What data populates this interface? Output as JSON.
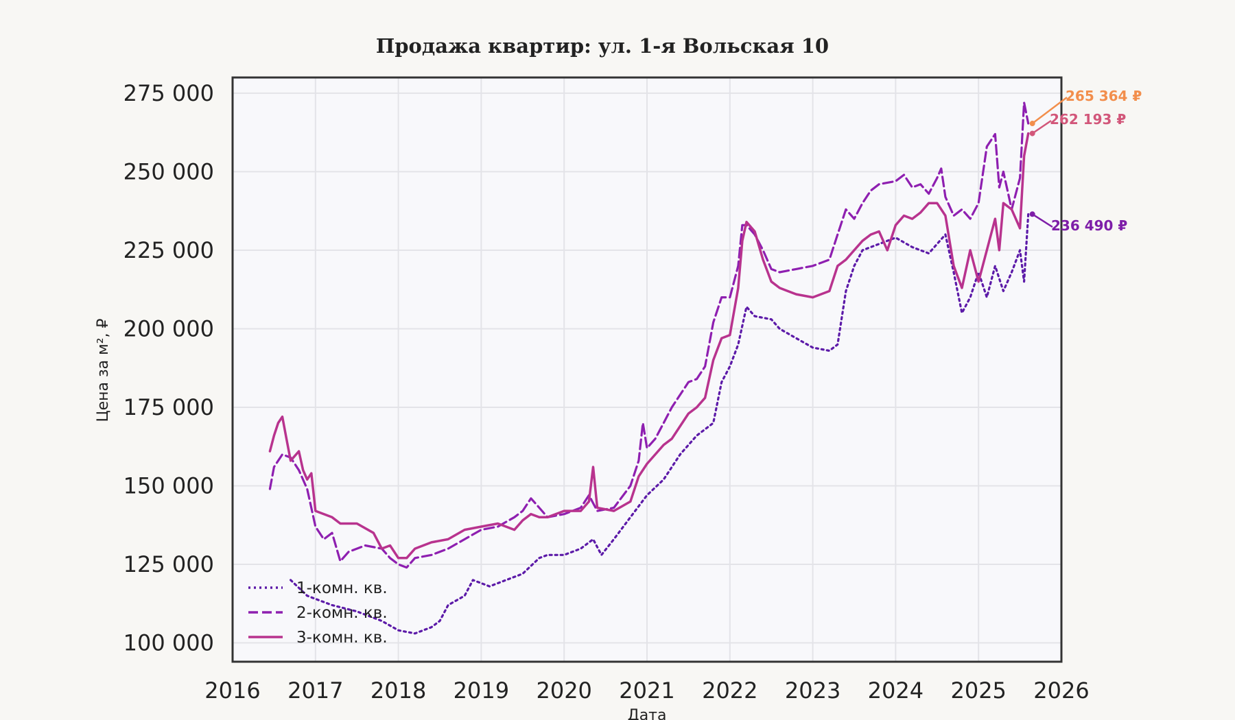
{
  "chart_data": {
    "type": "line",
    "title": "Продажа квартир: ул. 1-я Вольская 10",
    "xlabel": "Дата",
    "ylabel": "Цена за м², ₽",
    "xlim": [
      2016,
      2026
    ],
    "ylim": [
      94000,
      280000
    ],
    "x_ticks": [
      2016,
      2017,
      2018,
      2019,
      2020,
      2021,
      2022,
      2023,
      2024,
      2025,
      2026
    ],
    "x_tick_labels": [
      "2016",
      "2017",
      "2018",
      "2019",
      "2020",
      "2021",
      "2022",
      "2023",
      "2024",
      "2025",
      "2026"
    ],
    "y_ticks": [
      100000,
      125000,
      150000,
      175000,
      200000,
      225000,
      250000,
      275000
    ],
    "y_tick_labels": [
      "100 000",
      "125 000",
      "150 000",
      "175 000",
      "200 000",
      "225 000",
      "250 000",
      "275 000"
    ],
    "grid": true,
    "legend_position": "bottom-left",
    "series": [
      {
        "name": "1-комн. кв.",
        "style": "dotted",
        "color": "#5c1aa8",
        "points": [
          [
            2016.7,
            120000
          ],
          [
            2016.9,
            115000
          ],
          [
            2017.0,
            114000
          ],
          [
            2017.2,
            112000
          ],
          [
            2017.5,
            110000
          ],
          [
            2017.8,
            107000
          ],
          [
            2018.0,
            104000
          ],
          [
            2018.2,
            103000
          ],
          [
            2018.4,
            105000
          ],
          [
            2018.5,
            107000
          ],
          [
            2018.6,
            112000
          ],
          [
            2018.8,
            115000
          ],
          [
            2018.9,
            120000
          ],
          [
            2019.1,
            118000
          ],
          [
            2019.3,
            120000
          ],
          [
            2019.5,
            122000
          ],
          [
            2019.7,
            127000
          ],
          [
            2019.8,
            128000
          ],
          [
            2020.0,
            128000
          ],
          [
            2020.2,
            130000
          ],
          [
            2020.35,
            133000
          ],
          [
            2020.45,
            128000
          ],
          [
            2020.6,
            133000
          ],
          [
            2020.8,
            140000
          ],
          [
            2021.0,
            147000
          ],
          [
            2021.2,
            152000
          ],
          [
            2021.4,
            160000
          ],
          [
            2021.6,
            166000
          ],
          [
            2021.8,
            170000
          ],
          [
            2021.9,
            183000
          ],
          [
            2022.0,
            188000
          ],
          [
            2022.1,
            195000
          ],
          [
            2022.2,
            207000
          ],
          [
            2022.3,
            204000
          ],
          [
            2022.5,
            203000
          ],
          [
            2022.6,
            200000
          ],
          [
            2022.8,
            197000
          ],
          [
            2023.0,
            194000
          ],
          [
            2023.2,
            193000
          ],
          [
            2023.3,
            195000
          ],
          [
            2023.4,
            212000
          ],
          [
            2023.5,
            220000
          ],
          [
            2023.6,
            225000
          ],
          [
            2023.8,
            227000
          ],
          [
            2024.0,
            229000
          ],
          [
            2024.2,
            226000
          ],
          [
            2024.4,
            224000
          ],
          [
            2024.6,
            230000
          ],
          [
            2024.7,
            218000
          ],
          [
            2024.8,
            205000
          ],
          [
            2024.9,
            210000
          ],
          [
            2025.0,
            218000
          ],
          [
            2025.1,
            210000
          ],
          [
            2025.2,
            220000
          ],
          [
            2025.3,
            212000
          ],
          [
            2025.4,
            218000
          ],
          [
            2025.5,
            225000
          ],
          [
            2025.55,
            215000
          ],
          [
            2025.6,
            236490
          ]
        ]
      },
      {
        "name": "2-комн. кв.",
        "style": "dashed",
        "color": "#8e1fb0",
        "points": [
          [
            2016.45,
            149000
          ],
          [
            2016.5,
            156000
          ],
          [
            2016.6,
            160000
          ],
          [
            2016.7,
            159000
          ],
          [
            2016.8,
            155000
          ],
          [
            2016.9,
            149000
          ],
          [
            2017.0,
            137000
          ],
          [
            2017.1,
            133000
          ],
          [
            2017.2,
            135000
          ],
          [
            2017.3,
            126000
          ],
          [
            2017.4,
            129000
          ],
          [
            2017.5,
            130000
          ],
          [
            2017.6,
            131000
          ],
          [
            2017.8,
            130000
          ],
          [
            2017.9,
            127000
          ],
          [
            2018.0,
            125000
          ],
          [
            2018.1,
            124000
          ],
          [
            2018.2,
            127000
          ],
          [
            2018.4,
            128000
          ],
          [
            2018.6,
            130000
          ],
          [
            2018.8,
            133000
          ],
          [
            2019.0,
            136000
          ],
          [
            2019.2,
            137000
          ],
          [
            2019.4,
            140000
          ],
          [
            2019.5,
            142000
          ],
          [
            2019.6,
            146000
          ],
          [
            2019.7,
            143000
          ],
          [
            2019.8,
            140000
          ],
          [
            2020.0,
            141000
          ],
          [
            2020.2,
            143000
          ],
          [
            2020.3,
            147000
          ],
          [
            2020.4,
            142000
          ],
          [
            2020.6,
            143000
          ],
          [
            2020.8,
            150000
          ],
          [
            2020.9,
            158000
          ],
          [
            2020.95,
            170000
          ],
          [
            2021.0,
            162000
          ],
          [
            2021.1,
            165000
          ],
          [
            2021.2,
            170000
          ],
          [
            2021.3,
            175000
          ],
          [
            2021.5,
            183000
          ],
          [
            2021.6,
            184000
          ],
          [
            2021.7,
            188000
          ],
          [
            2021.75,
            195000
          ],
          [
            2021.8,
            202000
          ],
          [
            2021.9,
            210000
          ],
          [
            2022.0,
            210000
          ],
          [
            2022.1,
            220000
          ],
          [
            2022.15,
            233000
          ],
          [
            2022.2,
            233000
          ],
          [
            2022.3,
            230000
          ],
          [
            2022.4,
            225000
          ],
          [
            2022.5,
            219000
          ],
          [
            2022.6,
            218000
          ],
          [
            2022.8,
            219000
          ],
          [
            2023.0,
            220000
          ],
          [
            2023.2,
            222000
          ],
          [
            2023.3,
            230000
          ],
          [
            2023.4,
            238000
          ],
          [
            2023.5,
            235000
          ],
          [
            2023.6,
            240000
          ],
          [
            2023.7,
            244000
          ],
          [
            2023.8,
            246000
          ],
          [
            2024.0,
            247000
          ],
          [
            2024.1,
            249000
          ],
          [
            2024.2,
            245000
          ],
          [
            2024.3,
            246000
          ],
          [
            2024.4,
            243000
          ],
          [
            2024.5,
            248000
          ],
          [
            2024.55,
            251000
          ],
          [
            2024.6,
            242000
          ],
          [
            2024.7,
            236000
          ],
          [
            2024.8,
            238000
          ],
          [
            2024.9,
            235000
          ],
          [
            2025.0,
            240000
          ],
          [
            2025.1,
            258000
          ],
          [
            2025.2,
            262000
          ],
          [
            2025.25,
            245000
          ],
          [
            2025.3,
            250000
          ],
          [
            2025.4,
            238000
          ],
          [
            2025.5,
            248000
          ],
          [
            2025.55,
            272000
          ],
          [
            2025.6,
            265364
          ]
        ]
      },
      {
        "name": "3-комн. кв.",
        "style": "solid",
        "color": "#b8338e",
        "points": [
          [
            2016.45,
            161000
          ],
          [
            2016.5,
            166000
          ],
          [
            2016.55,
            170000
          ],
          [
            2016.6,
            172000
          ],
          [
            2016.65,
            165000
          ],
          [
            2016.7,
            158000
          ],
          [
            2016.8,
            161000
          ],
          [
            2016.85,
            155000
          ],
          [
            2016.9,
            152000
          ],
          [
            2016.95,
            154000
          ],
          [
            2017.0,
            142000
          ],
          [
            2017.2,
            140000
          ],
          [
            2017.3,
            138000
          ],
          [
            2017.5,
            138000
          ],
          [
            2017.7,
            135000
          ],
          [
            2017.8,
            130000
          ],
          [
            2017.9,
            131000
          ],
          [
            2018.0,
            127000
          ],
          [
            2018.1,
            127000
          ],
          [
            2018.2,
            130000
          ],
          [
            2018.4,
            132000
          ],
          [
            2018.6,
            133000
          ],
          [
            2018.8,
            136000
          ],
          [
            2019.0,
            137000
          ],
          [
            2019.2,
            138000
          ],
          [
            2019.4,
            136000
          ],
          [
            2019.5,
            139000
          ],
          [
            2019.6,
            141000
          ],
          [
            2019.7,
            140000
          ],
          [
            2019.8,
            140000
          ],
          [
            2020.0,
            142000
          ],
          [
            2020.2,
            142000
          ],
          [
            2020.3,
            145000
          ],
          [
            2020.35,
            156000
          ],
          [
            2020.4,
            143000
          ],
          [
            2020.6,
            142000
          ],
          [
            2020.8,
            145000
          ],
          [
            2020.9,
            153000
          ],
          [
            2021.0,
            157000
          ],
          [
            2021.2,
            163000
          ],
          [
            2021.3,
            165000
          ],
          [
            2021.5,
            173000
          ],
          [
            2021.6,
            175000
          ],
          [
            2021.7,
            178000
          ],
          [
            2021.8,
            190000
          ],
          [
            2021.9,
            197000
          ],
          [
            2022.0,
            198000
          ],
          [
            2022.1,
            213000
          ],
          [
            2022.15,
            228000
          ],
          [
            2022.2,
            234000
          ],
          [
            2022.3,
            231000
          ],
          [
            2022.4,
            222000
          ],
          [
            2022.5,
            215000
          ],
          [
            2022.6,
            213000
          ],
          [
            2022.8,
            211000
          ],
          [
            2023.0,
            210000
          ],
          [
            2023.2,
            212000
          ],
          [
            2023.3,
            220000
          ],
          [
            2023.4,
            222000
          ],
          [
            2023.5,
            225000
          ],
          [
            2023.6,
            228000
          ],
          [
            2023.7,
            230000
          ],
          [
            2023.8,
            231000
          ],
          [
            2023.9,
            225000
          ],
          [
            2024.0,
            233000
          ],
          [
            2024.1,
            236000
          ],
          [
            2024.2,
            235000
          ],
          [
            2024.3,
            237000
          ],
          [
            2024.4,
            240000
          ],
          [
            2024.5,
            240000
          ],
          [
            2024.6,
            236000
          ],
          [
            2024.7,
            220000
          ],
          [
            2024.8,
            213000
          ],
          [
            2024.9,
            225000
          ],
          [
            2025.0,
            215000
          ],
          [
            2025.1,
            225000
          ],
          [
            2025.2,
            235000
          ],
          [
            2025.25,
            225000
          ],
          [
            2025.3,
            240000
          ],
          [
            2025.4,
            238000
          ],
          [
            2025.5,
            232000
          ],
          [
            2025.55,
            255000
          ],
          [
            2025.6,
            262193
          ]
        ]
      }
    ],
    "annotations": [
      {
        "text": "265 364 ₽",
        "color": "#f28e4c",
        "value": 265364
      },
      {
        "text": "262 193 ₽",
        "color": "#d2577a",
        "value": 262193
      },
      {
        "text": "236 490 ₽",
        "color": "#7e1ea8",
        "value": 236490
      }
    ]
  }
}
